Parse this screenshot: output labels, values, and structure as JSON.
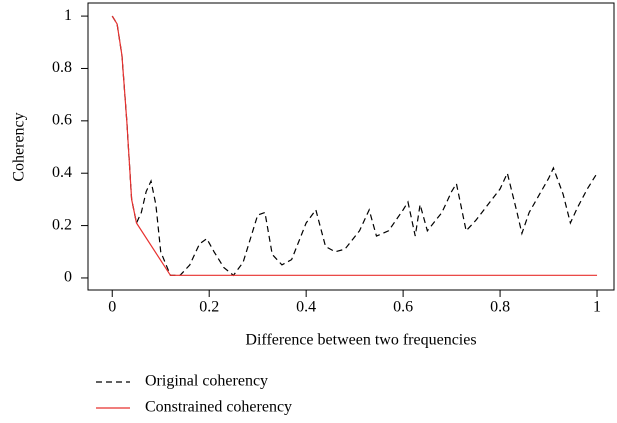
{
  "chart_data": {
    "type": "line",
    "xlabel": "Difference between two frequencies",
    "ylabel": "Coherency",
    "xlim": [
      -0.05,
      1.035
    ],
    "ylim": [
      -0.046,
      1.05
    ],
    "xticks": [
      0,
      0.2,
      0.4,
      0.6,
      0.8,
      1
    ],
    "yticks": [
      0,
      0.2,
      0.4,
      0.6,
      0.8,
      1
    ],
    "series": [
      {
        "name": "Original coherency",
        "color": "#000000",
        "dash": true,
        "x": [
          0,
          0.01,
          0.02,
          0.03,
          0.04,
          0.05,
          0.06,
          0.07,
          0.08,
          0.09,
          0.1,
          0.12,
          0.14,
          0.16,
          0.18,
          0.195,
          0.21,
          0.23,
          0.25,
          0.27,
          0.3,
          0.315,
          0.33,
          0.35,
          0.37,
          0.4,
          0.42,
          0.44,
          0.46,
          0.48,
          0.51,
          0.53,
          0.545,
          0.57,
          0.6,
          0.61,
          0.625,
          0.635,
          0.65,
          0.68,
          0.7,
          0.71,
          0.73,
          0.75,
          0.8,
          0.815,
          0.835,
          0.845,
          0.86,
          0.9,
          0.91,
          0.93,
          0.945,
          0.96,
          0.98,
          1.0
        ],
        "values": [
          1.0,
          0.97,
          0.85,
          0.6,
          0.3,
          0.21,
          0.25,
          0.33,
          0.37,
          0.28,
          0.1,
          0.01,
          0.01,
          0.05,
          0.13,
          0.15,
          0.1,
          0.04,
          0.01,
          0.06,
          0.24,
          0.25,
          0.09,
          0.05,
          0.07,
          0.21,
          0.26,
          0.12,
          0.1,
          0.11,
          0.18,
          0.26,
          0.16,
          0.18,
          0.26,
          0.29,
          0.16,
          0.28,
          0.18,
          0.25,
          0.33,
          0.36,
          0.18,
          0.22,
          0.34,
          0.4,
          0.25,
          0.17,
          0.25,
          0.38,
          0.42,
          0.32,
          0.21,
          0.27,
          0.34,
          0.4
        ]
      },
      {
        "name": "Constrained coherency",
        "color": "#e8312f",
        "dash": false,
        "x": [
          0,
          0.01,
          0.02,
          0.03,
          0.04,
          0.05,
          0.12,
          0.14,
          1.0
        ],
        "values": [
          1.0,
          0.97,
          0.85,
          0.6,
          0.3,
          0.21,
          0.01,
          0.01,
          0.01
        ]
      }
    ]
  }
}
